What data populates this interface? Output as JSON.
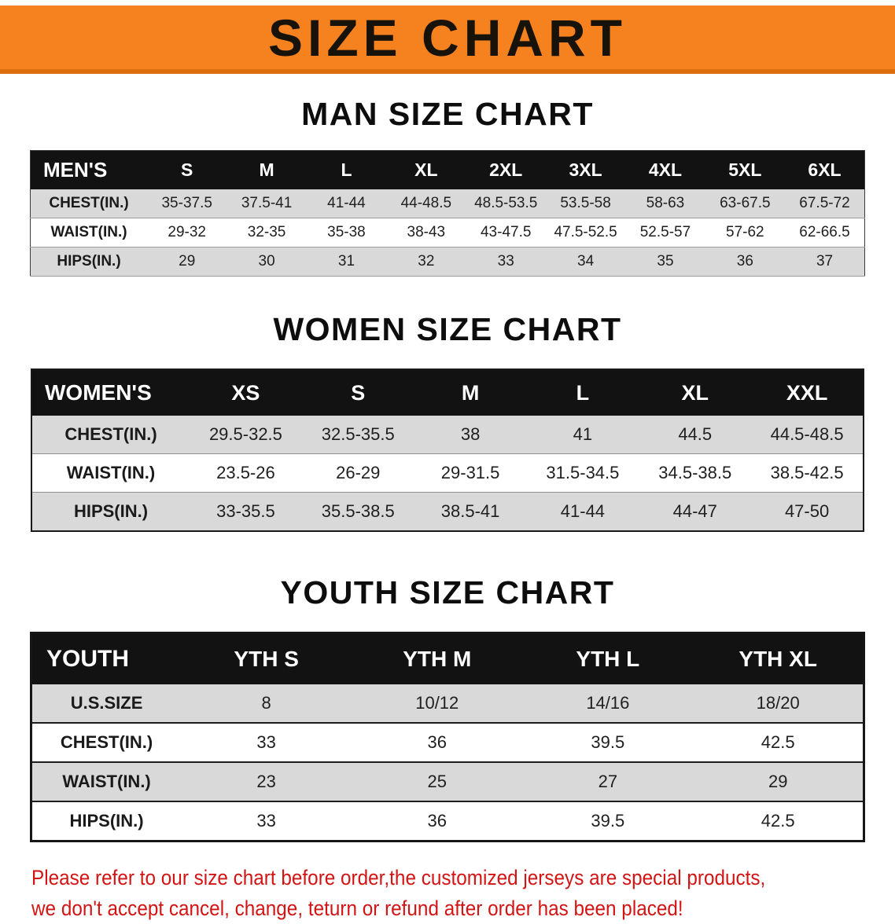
{
  "title": "SIZE CHART",
  "colors": {
    "banner": "#f6821f",
    "banner-edge": "#dd6e0e",
    "header-bg": "#121212",
    "row-gray": "#d9d9d9",
    "row-white": "#ffffff",
    "red": "#d31414",
    "ink": "#141414"
  },
  "chart_data": [
    {
      "type": "table",
      "title": "MAN SIZE CHART",
      "columns": [
        "MEN'S",
        "S",
        "M",
        "L",
        "XL",
        "2XL",
        "3XL",
        "4XL",
        "5XL",
        "6XL"
      ],
      "rows": [
        [
          "CHEST(IN.)",
          "35-37.5",
          "37.5-41",
          "41-44",
          "44-48.5",
          "48.5-53.5",
          "53.5-58",
          "58-63",
          "63-67.5",
          "67.5-72"
        ],
        [
          "WAIST(IN.)",
          "29-32",
          "32-35",
          "35-38",
          "38-43",
          "43-47.5",
          "47.5-52.5",
          "52.5-57",
          "57-62",
          "62-66.5"
        ],
        [
          "HIPS(IN.)",
          "29",
          "30",
          "31",
          "32",
          "33",
          "34",
          "35",
          "36",
          "37"
        ]
      ]
    },
    {
      "type": "table",
      "title": "WOMEN SIZE CHART",
      "columns": [
        "WOMEN'S",
        "XS",
        "S",
        "M",
        "L",
        "XL",
        "XXL"
      ],
      "rows": [
        [
          "CHEST(IN.)",
          "29.5-32.5",
          "32.5-35.5",
          "38",
          "41",
          "44.5",
          "44.5-48.5"
        ],
        [
          "WAIST(IN.)",
          "23.5-26",
          "26-29",
          "29-31.5",
          "31.5-34.5",
          "34.5-38.5",
          "38.5-42.5"
        ],
        [
          "HIPS(IN.)",
          "33-35.5",
          "35.5-38.5",
          "38.5-41",
          "41-44",
          "44-47",
          "47-50"
        ]
      ]
    },
    {
      "type": "table",
      "title": "YOUTH SIZE CHART",
      "columns": [
        "YOUTH",
        "YTH S",
        "YTH M",
        "YTH L",
        "YTH XL"
      ],
      "rows": [
        [
          "U.S.SIZE",
          "8",
          "10/12",
          "14/16",
          "18/20"
        ],
        [
          "CHEST(IN.)",
          "33",
          "36",
          "39.5",
          "42.5"
        ],
        [
          "WAIST(IN.)",
          "23",
          "25",
          "27",
          "29"
        ],
        [
          "HIPS(IN.)",
          "33",
          "36",
          "39.5",
          "42.5"
        ]
      ]
    }
  ],
  "disclaimer": {
    "line1": "Please refer to our size chart before order,the customized jerseys are special products,",
    "line2": "we don't accept cancel, change, teturn or refund after order has been placed!"
  }
}
